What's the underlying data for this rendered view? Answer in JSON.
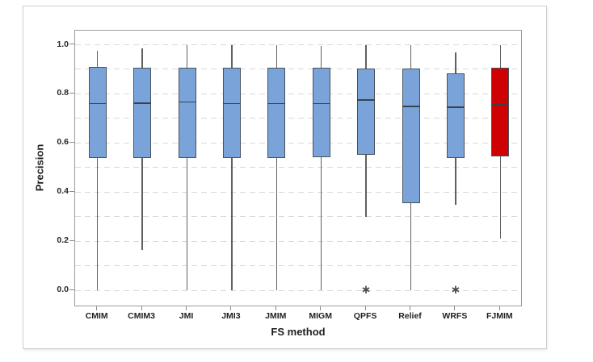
{
  "chart_data": {
    "type": "boxplot",
    "title": "",
    "xlabel": "FS method",
    "ylabel": "Precision",
    "categories": [
      "CMIM",
      "CMIM3",
      "JMI",
      "JMI3",
      "JMIM",
      "MIGM",
      "QPFS",
      "Relief",
      "WRFS",
      "FJMIM"
    ],
    "yticks": [
      0.0,
      0.2,
      0.4,
      0.6,
      0.8,
      1.0
    ],
    "ylim": [
      0.0,
      1.0
    ],
    "gridline_step": 0.1,
    "grid": "dashed-horizontal",
    "legend": "none",
    "outlier_marker_glyph": "∗",
    "colors": {
      "box_fill_default": "#7aa4d9",
      "box_fill_highlight": "#ce0202",
      "box_border": "#47525d",
      "median_line": "#37424e",
      "whisker": "#606060",
      "gridline": "#d9d9d9",
      "plot_border": "#9b9b9b",
      "text": "#1f1f1f"
    },
    "highlight_category": "FJMIM",
    "boxes": [
      {
        "category": "CMIM",
        "whisker_low": 0.0,
        "q1": 0.54,
        "median": 0.76,
        "q3": 0.91,
        "whisker_high": 0.975,
        "outliers": [],
        "fill": "#7aa4d9"
      },
      {
        "category": "CMIM3",
        "whisker_low": 0.165,
        "q1": 0.54,
        "median": 0.762,
        "q3": 0.905,
        "whisker_high": 0.985,
        "outliers": [],
        "fill": "#7aa4d9"
      },
      {
        "category": "JMI",
        "whisker_low": 0.0,
        "q1": 0.54,
        "median": 0.767,
        "q3": 0.908,
        "whisker_high": 1.0,
        "outliers": [],
        "fill": "#7aa4d9"
      },
      {
        "category": "JMI3",
        "whisker_low": 0.0,
        "q1": 0.54,
        "median": 0.76,
        "q3": 0.908,
        "whisker_high": 1.0,
        "outliers": [],
        "fill": "#7aa4d9"
      },
      {
        "category": "JMIM",
        "whisker_low": 0.0,
        "q1": 0.54,
        "median": 0.76,
        "q3": 0.908,
        "whisker_high": 1.0,
        "outliers": [],
        "fill": "#7aa4d9"
      },
      {
        "category": "MIGM",
        "whisker_low": 0.0,
        "q1": 0.542,
        "median": 0.76,
        "q3": 0.907,
        "whisker_high": 0.995,
        "outliers": [],
        "fill": "#7aa4d9"
      },
      {
        "category": "QPFS",
        "whisker_low": 0.298,
        "q1": 0.551,
        "median": 0.776,
        "q3": 0.902,
        "whisker_high": 1.0,
        "outliers": [
          0.0
        ],
        "fill": "#7aa4d9"
      },
      {
        "category": "Relief",
        "whisker_low": 0.0,
        "q1": 0.354,
        "median": 0.748,
        "q3": 0.902,
        "whisker_high": 1.0,
        "outliers": [],
        "fill": "#7aa4d9"
      },
      {
        "category": "WRFS",
        "whisker_low": 0.348,
        "q1": 0.54,
        "median": 0.745,
        "q3": 0.885,
        "whisker_high": 0.968,
        "outliers": [
          0.0
        ],
        "fill": "#7aa4d9"
      },
      {
        "category": "FJMIM",
        "whisker_low": 0.21,
        "q1": 0.545,
        "median": 0.759,
        "q3": 0.907,
        "whisker_high": 1.0,
        "outliers": [],
        "fill": "#ce0202"
      }
    ]
  }
}
